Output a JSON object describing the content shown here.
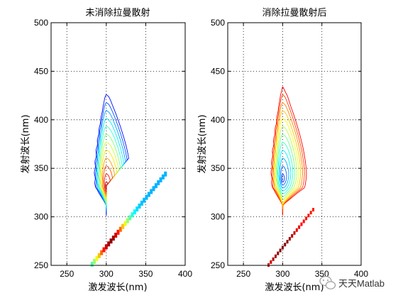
{
  "chart_data": [
    {
      "type": "contour",
      "title": "未消除拉曼散射",
      "xlabel": "激发波长(nm)",
      "ylabel": "发射波长(nm)",
      "xlim": [
        230,
        400
      ],
      "ylim": [
        250,
        500
      ],
      "xticks": [
        250,
        300,
        350,
        400
      ],
      "yticks": [
        250,
        300,
        350,
        400,
        450,
        500
      ],
      "grid": true,
      "colormap": "jet",
      "peak": {
        "x": 300,
        "y": 330
      },
      "levels": [
        0.06,
        0.14,
        0.22,
        0.3,
        0.38,
        0.46,
        0.54,
        0.62,
        0.7,
        0.78,
        0.86,
        0.94
      ],
      "raman_band": true
    },
    {
      "type": "contour",
      "title": "消除拉曼散射后",
      "xlabel": "激发波长(nm)",
      "ylabel": "发射波长(nm)",
      "xlim": [
        230,
        400
      ],
      "ylim": [
        250,
        500
      ],
      "xticks": [
        250,
        300,
        350,
        400
      ],
      "yticks": [
        250,
        300,
        350,
        400,
        450,
        500
      ],
      "grid": true,
      "colormap": "jet",
      "peak": {
        "x": 300,
        "y": 338
      },
      "levels": [
        0.06,
        0.14,
        0.22,
        0.3,
        0.38,
        0.46,
        0.54,
        0.62,
        0.7,
        0.78,
        0.86,
        0.94
      ],
      "raman_band": false
    }
  ],
  "watermark": {
    "text": "天天Matlab",
    "icon": "wechat-icon"
  }
}
